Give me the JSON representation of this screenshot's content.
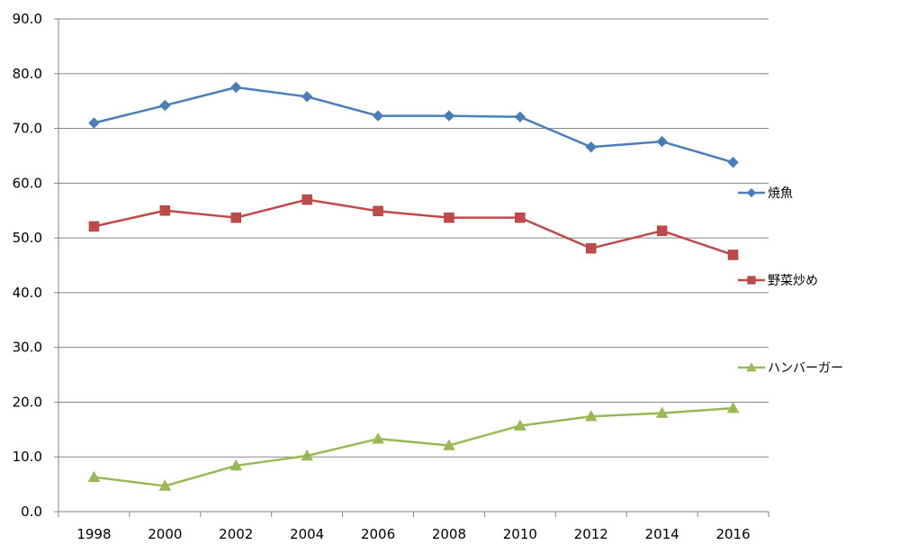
{
  "chart_data": {
    "type": "line",
    "x": [
      "1998",
      "2000",
      "2002",
      "2004",
      "2006",
      "2008",
      "2010",
      "2012",
      "2014",
      "2016"
    ],
    "ylim": [
      0,
      90
    ],
    "yticks": [
      "0.0",
      "10.0",
      "20.0",
      "30.0",
      "40.0",
      "50.0",
      "60.0",
      "70.0",
      "80.0",
      "90.0"
    ],
    "grid": true,
    "legend_placement": "right, at end of each series",
    "series": [
      {
        "name": "焼魚",
        "marker": "diamond",
        "color": "#4a7ebb",
        "values": [
          71.0,
          74.2,
          77.5,
          75.8,
          72.3,
          72.3,
          72.1,
          66.6,
          67.6,
          63.8
        ]
      },
      {
        "name": "野菜炒め",
        "marker": "square",
        "color": "#be4b48",
        "values": [
          52.1,
          55.0,
          53.7,
          57.0,
          54.9,
          53.7,
          53.7,
          48.1,
          51.3,
          46.9
        ]
      },
      {
        "name": "ハンバーガー",
        "marker": "triangle",
        "color": "#98b954",
        "values": [
          6.3,
          4.7,
          8.4,
          10.2,
          13.3,
          12.1,
          15.7,
          17.4,
          18.0,
          18.9
        ]
      }
    ]
  }
}
